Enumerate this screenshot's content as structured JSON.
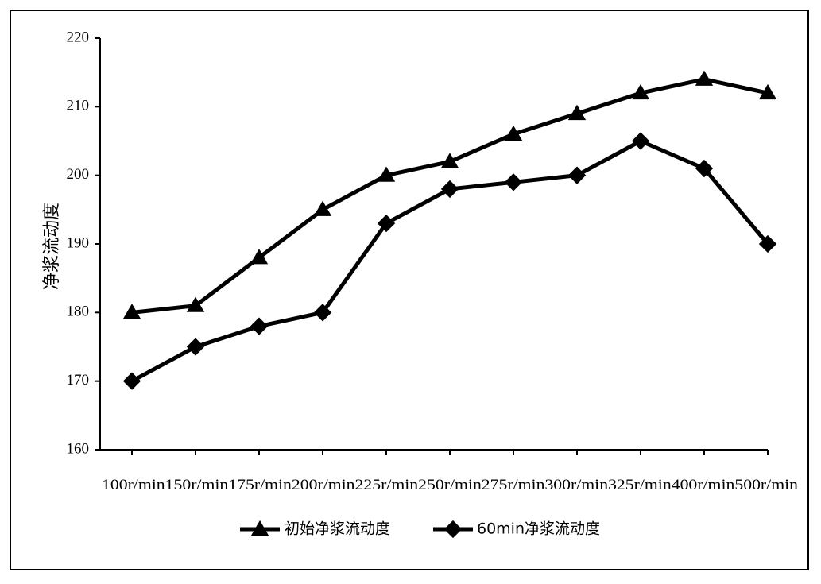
{
  "chart_data": {
    "type": "line",
    "title": "",
    "xlabel": "",
    "ylabel": "净浆流动度",
    "categories": [
      "100r/min",
      "150r/min",
      "175r/min",
      "200r/min",
      "225r/min",
      "250r/min",
      "275r/min",
      "300r/min",
      "325r/min",
      "400r/min",
      "500r/min"
    ],
    "ylim": [
      160,
      220
    ],
    "yticks": [
      160,
      170,
      180,
      190,
      200,
      210,
      220
    ],
    "grid": false,
    "legend_position": "bottom",
    "series": [
      {
        "name": "初始净浆流动度",
        "marker": "triangle",
        "color": "#000000",
        "values": [
          180,
          181,
          188,
          195,
          200,
          202,
          206,
          209,
          212,
          214,
          212
        ]
      },
      {
        "name": "60min净浆流动度",
        "marker": "diamond",
        "color": "#000000",
        "values": [
          170,
          175,
          178,
          180,
          193,
          198,
          199,
          200,
          205,
          201,
          190
        ]
      }
    ]
  }
}
